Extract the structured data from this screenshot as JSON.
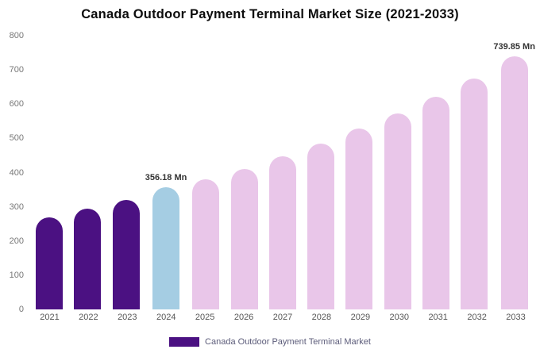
{
  "title": "Canada Outdoor Payment Terminal Market Size (2021-2033)",
  "legend": {
    "label": "Canada Outdoor Payment Terminal Market",
    "swatch_color": "#4B1182"
  },
  "colors": {
    "historical": "#4B1182",
    "current_year": "#A5CDE3",
    "forecast": "#E9C6E9"
  },
  "chart_data": {
    "type": "bar",
    "title": "Canada Outdoor Payment Terminal Market Size (2021-2033)",
    "xlabel": "",
    "ylabel": "",
    "unit": "Mn",
    "categories": [
      "2021",
      "2022",
      "2023",
      "2024",
      "2025",
      "2026",
      "2027",
      "2028",
      "2029",
      "2030",
      "2031",
      "2032",
      "2033"
    ],
    "values": [
      270,
      295,
      320,
      356.18,
      380,
      410,
      447,
      485,
      528,
      572,
      622,
      675,
      739.85
    ],
    "bar_colors": [
      "#4B1182",
      "#4B1182",
      "#4B1182",
      "#A5CDE3",
      "#E9C6E9",
      "#E9C6E9",
      "#E9C6E9",
      "#E9C6E9",
      "#E9C6E9",
      "#E9C6E9",
      "#E9C6E9",
      "#E9C6E9",
      "#E9C6E9"
    ],
    "annotations": [
      "",
      "",
      "",
      "356.18 Mn",
      "",
      "",
      "",
      "",
      "",
      "",
      "",
      "",
      "739.85 Mn"
    ],
    "ylim": [
      0,
      800
    ],
    "y_ticks": [
      0,
      100,
      200,
      300,
      400,
      500,
      600,
      700,
      800
    ],
    "grid": false,
    "legend_position": "bottom",
    "legend_entries": [
      "Canada Outdoor Payment Terminal Market"
    ]
  }
}
